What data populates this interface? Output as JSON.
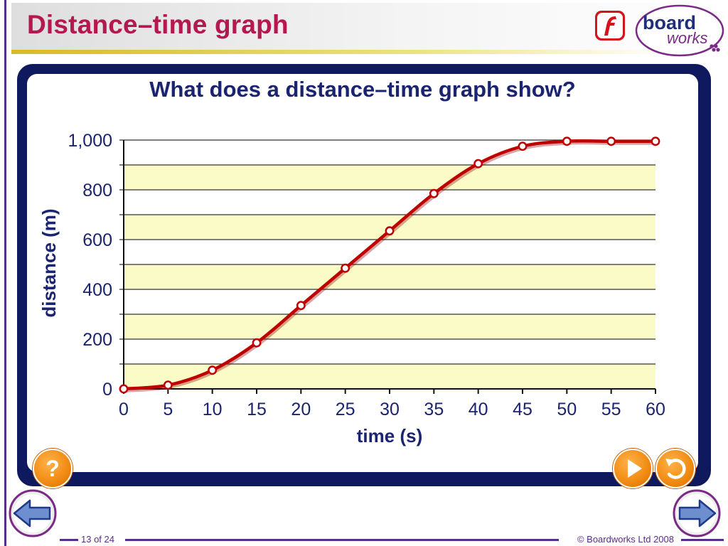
{
  "header": {
    "title": "Distance–time graph",
    "logo_text_1": "board",
    "logo_text_2": "works"
  },
  "activity": {
    "question": "What does a distance–time graph show?"
  },
  "chart_data": {
    "type": "line",
    "title": "",
    "xlabel": "time (s)",
    "ylabel": "distance (m)",
    "xlim": [
      0,
      60
    ],
    "ylim": [
      0,
      1000
    ],
    "x_ticks": [
      "0",
      "5",
      "10",
      "15",
      "20",
      "25",
      "30",
      "35",
      "40",
      "45",
      "50",
      "55",
      "60"
    ],
    "y_ticks": [
      "0",
      "200",
      "400",
      "600",
      "800",
      "1,000"
    ],
    "grid": "horizontal",
    "band_colors": [
      "#fbfbc8",
      "#ffffff"
    ],
    "series": [
      {
        "color": "#c00000",
        "x": [
          0,
          5,
          10,
          15,
          20,
          25,
          30,
          35,
          40,
          45,
          50,
          55,
          60
        ],
        "y": [
          0,
          15,
          75,
          185,
          335,
          485,
          635,
          785,
          905,
          975,
          995,
          995,
          995
        ]
      }
    ]
  },
  "buttons": {
    "help_icon": "question-mark",
    "play_icon": "play-triangle",
    "replay_icon": "circular-arrow"
  },
  "footer": {
    "page": "13 of 24",
    "copyright": "© Boardworks Ltd 2008"
  },
  "colors": {
    "title": "#b5174f",
    "frame": "#0f1a5e",
    "accent_orange": "#f08a10",
    "footer": "#5b2d86"
  }
}
